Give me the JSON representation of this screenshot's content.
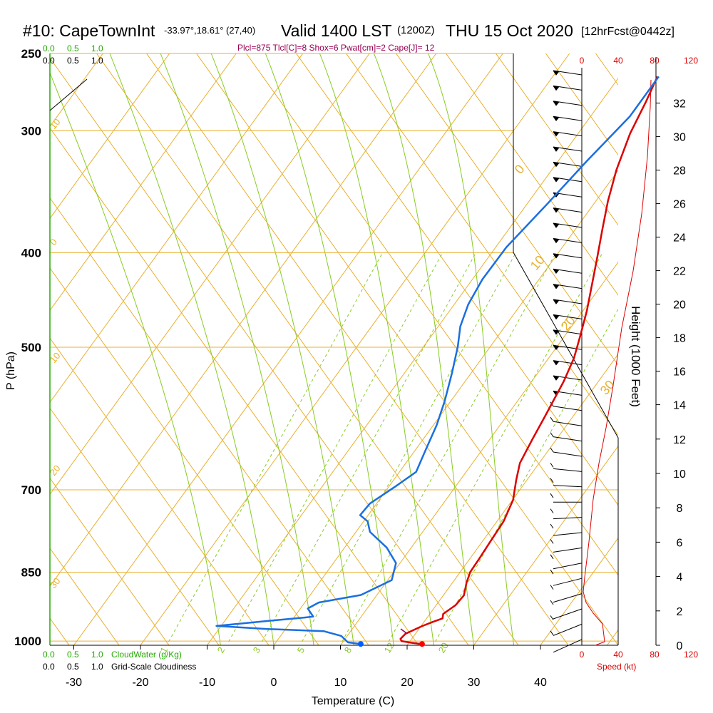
{
  "header": {
    "station": "#10: CapeTownInt",
    "location": "-33.97°,18.61° (27,40)",
    "valid": "Valid 1400 LST",
    "zulu": "(1200Z)",
    "date": "THU 15 Oct 2020",
    "forecast": "[12hrFcst@0442z]"
  },
  "indices": "Plcl=875 Tlcl[C]=8 Shox=6 Pwat[cm]=2 Cape[J]= 12",
  "left_scale": {
    "cloudwater_values": [
      "0.0",
      "0.5",
      "1.0"
    ],
    "cloudiness_values": [
      "0.0",
      "0.5",
      "1.0"
    ],
    "cloudwater_label": "CloudWater (g/Kg)",
    "cloudiness_label": "Grid-Scale Cloudiness"
  },
  "speed_scale": {
    "values": [
      "0",
      "40",
      "80",
      "120"
    ],
    "label": "Speed (kt)"
  },
  "chart_data": {
    "type": "line",
    "title": "",
    "xlabel": "Temperature (C)",
    "ylabel": "P (hPa)",
    "y2label": "Height (1000 Feet)",
    "xlim": [
      -35,
      46
    ],
    "ylim": [
      1010,
      250
    ],
    "x_ticks": [
      -30,
      -20,
      -10,
      0,
      10,
      20,
      30,
      40
    ],
    "p_ticks": [
      250,
      300,
      400,
      500,
      700,
      850,
      1000
    ],
    "height_ticks": [
      0,
      2,
      4,
      6,
      8,
      10,
      12,
      14,
      16,
      18,
      20,
      22,
      24,
      26,
      28,
      30,
      32
    ],
    "isotherm_labels": [
      "-30",
      "-20",
      "-10",
      "0",
      "10",
      "20",
      "30"
    ],
    "mixing_ratio_labels": [
      "1",
      "2",
      "3",
      "5",
      "8",
      "12",
      "20"
    ],
    "colors": {
      "temperature": "#dd0000",
      "dewpoint": "#1a6fe0",
      "isobar": "#e8b030",
      "adiabat": "#88cc22"
    },
    "series": [
      {
        "key": "temperature",
        "points": [
          [
            22.0,
            1007
          ],
          [
            20.4,
            1004
          ],
          [
            18.7,
            1000
          ],
          [
            18.3,
            995
          ],
          [
            18.5,
            983
          ],
          [
            20.1,
            966
          ],
          [
            21.3,
            956
          ],
          [
            22.4,
            948
          ],
          [
            22.0,
            938
          ],
          [
            22.9,
            919
          ],
          [
            23.1,
            898
          ],
          [
            22.1,
            871
          ],
          [
            21.5,
            850
          ],
          [
            21.4,
            823
          ],
          [
            21.2,
            791
          ],
          [
            21.0,
            754
          ],
          [
            20.1,
            717
          ],
          [
            18.4,
            684
          ],
          [
            17.1,
            657
          ],
          [
            16.4,
            622
          ],
          [
            15.8,
            589
          ],
          [
            14.8,
            542
          ],
          [
            13.8,
            513
          ],
          [
            12.4,
            488
          ],
          [
            10.6,
            459
          ],
          [
            8.4,
            430
          ],
          [
            6.3,
            404
          ],
          [
            4.0,
            378
          ],
          [
            1.8,
            354
          ],
          [
            -0.3,
            329
          ],
          [
            -2.2,
            302
          ],
          [
            -3.3,
            280
          ],
          [
            -4.3,
            264
          ]
        ]
      },
      {
        "key": "dewpoint",
        "points": [
          [
            12.9,
            1007
          ],
          [
            10.8,
            1003
          ],
          [
            9.1,
            988
          ],
          [
            6.0,
            977
          ],
          [
            -2.7,
            972
          ],
          [
            -10.7,
            965
          ],
          [
            -3.8,
            954
          ],
          [
            1.6,
            946
          ],
          [
            2.8,
            944
          ],
          [
            1.1,
            926
          ],
          [
            2.1,
            913
          ],
          [
            7.6,
            897
          ],
          [
            10.6,
            866
          ],
          [
            9.4,
            832
          ],
          [
            6.3,
            802
          ],
          [
            2.1,
            773
          ],
          [
            0.6,
            754
          ],
          [
            -1.2,
            743
          ],
          [
            -1.0,
            723
          ],
          [
            1.0,
            694
          ],
          [
            2.5,
            671
          ],
          [
            1.5,
            636
          ],
          [
            0.5,
            601
          ],
          [
            -0.9,
            568
          ],
          [
            -2.9,
            531
          ],
          [
            -4.9,
            499
          ],
          [
            -6.7,
            476
          ],
          [
            -7.9,
            452
          ],
          [
            -8.5,
            426
          ],
          [
            -8.4,
            395
          ],
          [
            -7.0,
            357
          ],
          [
            -5.7,
            322
          ],
          [
            -4.1,
            290
          ],
          [
            -4.1,
            264
          ]
        ]
      }
    ],
    "markers": [
      {
        "key": "surface_temperature",
        "x": 22.1,
        "p": 1007,
        "color": "#ff0000"
      },
      {
        "key": "surface_dewpoint",
        "x": 12.9,
        "p": 1007,
        "color": "#0060ff"
      }
    ],
    "wind_barbs_count": 38
  }
}
